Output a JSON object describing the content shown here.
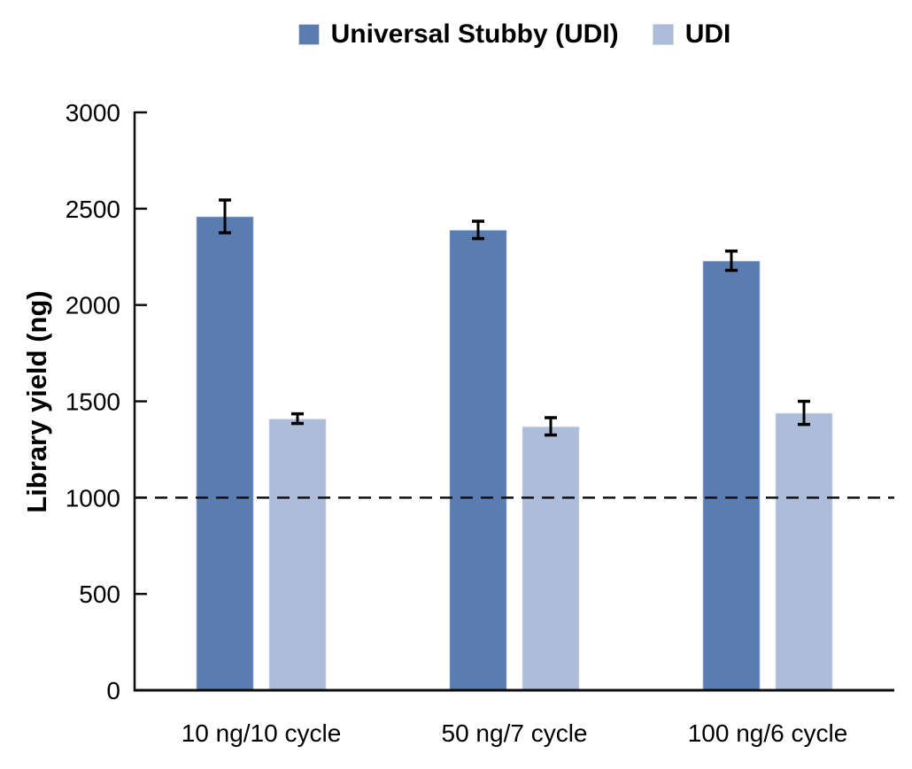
{
  "chart_data": {
    "type": "bar",
    "title": "",
    "ylabel": "Library yield (ng)",
    "xlabel": "",
    "ylim": [
      0,
      3000
    ],
    "yticks": [
      0,
      500,
      1000,
      1500,
      2000,
      2500,
      3000
    ],
    "categories": [
      "10 ng/10 cycle",
      "50 ng/7 cycle",
      "100 ng/6 cycle"
    ],
    "series": [
      {
        "name": "Universal Stubby (UDI)",
        "color": "#5a7cb0",
        "values": [
          2460,
          2390,
          2230
        ],
        "errors": [
          85,
          45,
          50
        ]
      },
      {
        "name": "UDI",
        "color": "#acbcd9",
        "values": [
          1410,
          1370,
          1440
        ],
        "errors": [
          25,
          45,
          60
        ]
      }
    ],
    "reference_line": {
      "y": 1000,
      "style": "dashed",
      "color": "#111111"
    },
    "legend_position": "top",
    "grid": false,
    "axis_color": "#0d0d0d",
    "error_bar_color": "#000000"
  }
}
